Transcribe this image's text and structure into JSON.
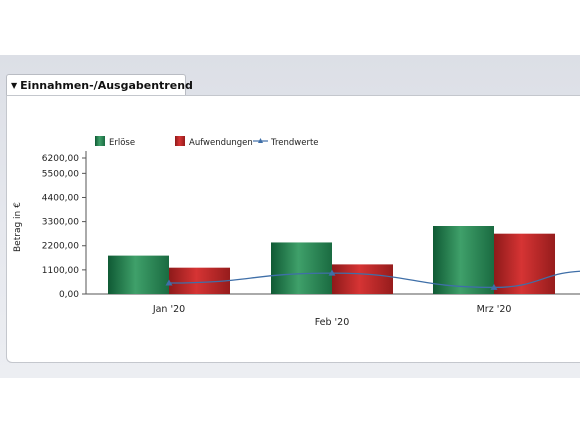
{
  "widget": {
    "title": "Einnahmen-/Ausgabentrend"
  },
  "chart_data": {
    "type": "bar",
    "categories": [
      "Jan '20",
      "Feb '20",
      "Mrz '20"
    ],
    "series": [
      {
        "name": "Erlöse",
        "type": "bar",
        "color": "#2e8b57",
        "values": [
          1750,
          2350,
          3100
        ]
      },
      {
        "name": "Aufwendungen",
        "type": "bar",
        "color": "#c62828",
        "values": [
          1200,
          1350,
          2750
        ]
      },
      {
        "name": "Trendwerte",
        "type": "line",
        "color": "#3f6fa8",
        "values": [
          500,
          950,
          300
        ]
      }
    ],
    "trend_continues_right": 1050,
    "yticks": [
      "6200,00",
      "5500,00",
      "4400,00",
      "3300,00",
      "2200,00",
      "1100,00",
      "0,00"
    ],
    "ytick_values": [
      6200,
      5500,
      4400,
      3300,
      2200,
      1100,
      0
    ],
    "ylabel": "Betrag in €",
    "ylim": [
      0,
      6200
    ],
    "legend": "top-left"
  }
}
